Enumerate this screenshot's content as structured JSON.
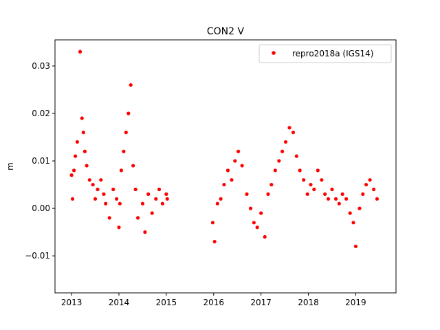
{
  "chart_data": {
    "type": "scatter",
    "title": "CON2 V",
    "xlabel": "",
    "ylabel": "m",
    "xlim": [
      2012.65,
      2019.85
    ],
    "ylim": [
      -0.0178,
      0.0355
    ],
    "xticks": [
      2013,
      2014,
      2015,
      2016,
      2017,
      2018,
      2019
    ],
    "xtick_labels": [
      "2013",
      "2014",
      "2015",
      "2016",
      "2017",
      "2018",
      "2019"
    ],
    "yticks": [
      -0.01,
      0.0,
      0.01,
      0.02,
      0.03
    ],
    "ytick_labels": [
      "−0.01",
      "0.00",
      "0.01",
      "0.02",
      "0.03"
    ],
    "grid": false,
    "legend_position": "top-right",
    "series": [
      {
        "name": "repro2018a (IGS14)",
        "color": "#ff0000",
        "marker": "circle",
        "x": [
          2013.0,
          2013.02,
          2013.05,
          2013.08,
          2013.12,
          2013.18,
          2013.22,
          2013.25,
          2013.28,
          2013.32,
          2013.38,
          2013.45,
          2013.5,
          2013.55,
          2013.62,
          2013.68,
          2013.72,
          2013.8,
          2013.88,
          2013.95,
          2014.0,
          2014.02,
          2014.05,
          2014.1,
          2014.15,
          2014.2,
          2014.25,
          2014.3,
          2014.35,
          2014.4,
          2014.5,
          2014.55,
          2014.62,
          2014.7,
          2014.78,
          2014.85,
          2014.92,
          2015.0,
          2015.02,
          2015.98,
          2016.02,
          2016.08,
          2016.15,
          2016.22,
          2016.3,
          2016.38,
          2016.45,
          2016.52,
          2016.6,
          2016.7,
          2016.78,
          2016.85,
          2016.92,
          2017.0,
          2017.08,
          2017.15,
          2017.22,
          2017.3,
          2017.38,
          2017.45,
          2017.52,
          2017.6,
          2017.68,
          2017.75,
          2017.82,
          2017.9,
          2017.98,
          2018.05,
          2018.12,
          2018.2,
          2018.28,
          2018.35,
          2018.42,
          2018.5,
          2018.58,
          2018.65,
          2018.72,
          2018.8,
          2018.88,
          2018.95,
          2019.0,
          2019.08,
          2019.15,
          2019.22,
          2019.3,
          2019.38,
          2019.45
        ],
        "y": [
          0.007,
          0.002,
          0.008,
          0.011,
          0.014,
          0.033,
          0.019,
          0.016,
          0.012,
          0.009,
          0.006,
          0.005,
          0.002,
          0.004,
          0.006,
          0.003,
          0.001,
          -0.002,
          0.004,
          0.002,
          -0.004,
          0.001,
          0.008,
          0.012,
          0.016,
          0.02,
          0.026,
          0.009,
          0.004,
          -0.002,
          0.001,
          -0.005,
          0.003,
          -0.001,
          0.002,
          0.004,
          0.001,
          0.003,
          0.002,
          -0.003,
          -0.007,
          0.001,
          0.002,
          0.005,
          0.008,
          0.006,
          0.01,
          0.012,
          0.009,
          0.003,
          0.0,
          -0.003,
          -0.004,
          -0.001,
          -0.006,
          0.003,
          0.005,
          0.008,
          0.01,
          0.012,
          0.014,
          0.017,
          0.016,
          0.011,
          0.008,
          0.006,
          0.003,
          0.005,
          0.004,
          0.008,
          0.006,
          0.003,
          0.002,
          0.004,
          0.002,
          0.001,
          0.003,
          0.002,
          -0.001,
          -0.003,
          -0.008,
          0.0,
          0.003,
          0.005,
          0.006,
          0.004,
          0.002
        ]
      }
    ]
  }
}
